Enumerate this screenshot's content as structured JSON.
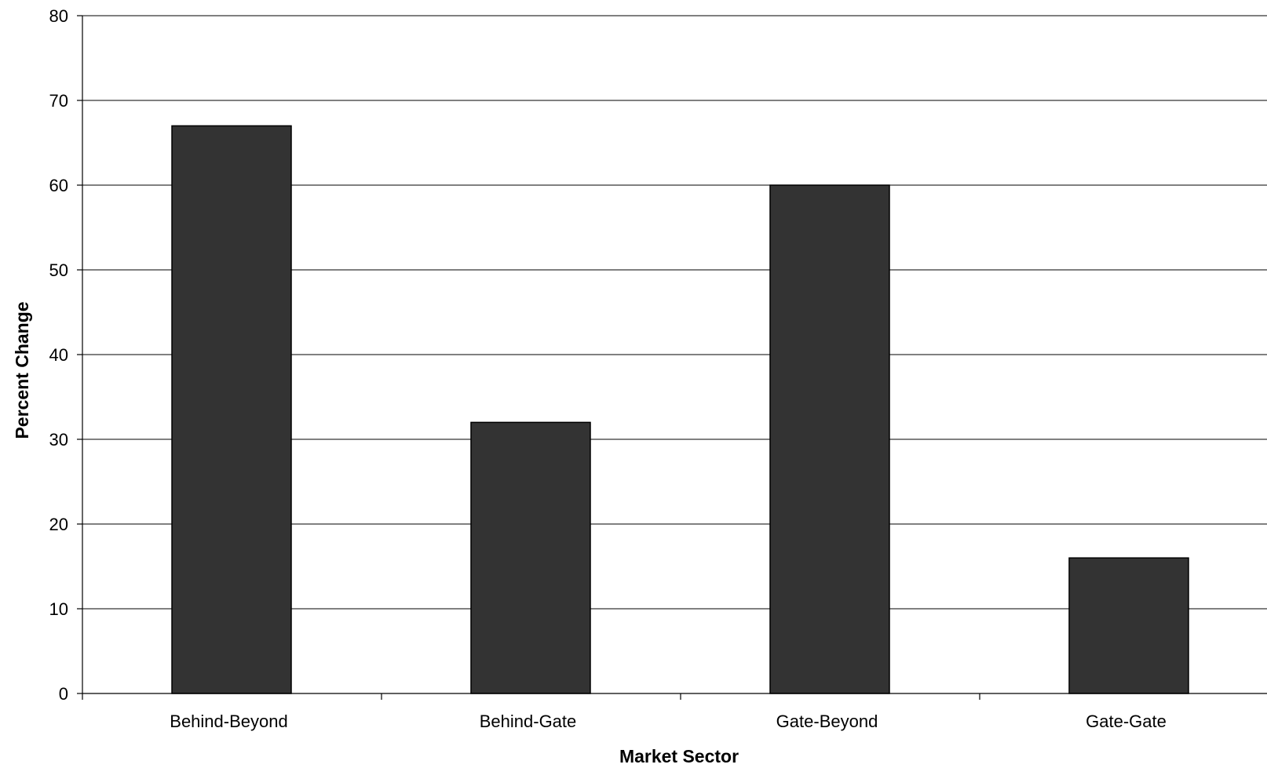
{
  "chart_data": {
    "type": "bar",
    "categories": [
      "Behind-Beyond",
      "Behind-Gate",
      "Gate-Beyond",
      "Gate-Gate"
    ],
    "values": [
      67,
      32,
      60,
      16
    ],
    "title": "",
    "xlabel": "Market Sector",
    "ylabel": "Percent Change",
    "ylim": [
      0,
      80
    ],
    "yticks": [
      0,
      10,
      20,
      30,
      40,
      50,
      60,
      70,
      80
    ],
    "grid": true,
    "legend": "none",
    "colors": {
      "bar_fill": "#333333",
      "bar_edge": "#000000",
      "grid": "#000000",
      "background": "#ffffff"
    }
  }
}
